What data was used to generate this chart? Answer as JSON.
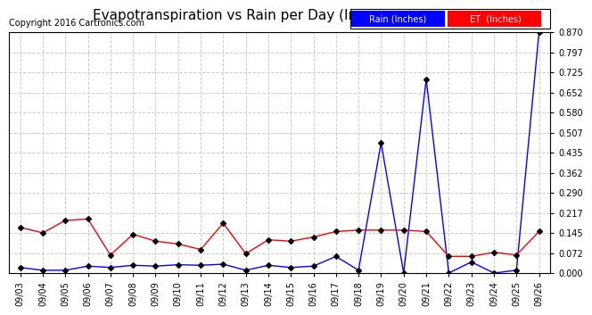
{
  "title": "Evapotranspiration vs Rain per Day (Inches) 20160927",
  "copyright": "Copyright 2016 Cartronics.com",
  "background_color": "#ffffff",
  "plot_bg_color": "#ffffff",
  "grid_color": "#cccccc",
  "x_labels": [
    "09/03",
    "09/04",
    "09/05",
    "09/06",
    "09/07",
    "09/08",
    "09/09",
    "09/10",
    "09/11",
    "09/12",
    "09/13",
    "09/14",
    "09/15",
    "09/16",
    "09/17",
    "09/18",
    "09/19",
    "09/20",
    "09/21",
    "09/22",
    "09/23",
    "09/24",
    "09/25",
    "09/26"
  ],
  "rain_data": [
    0.02,
    0.01,
    0.01,
    0.025,
    0.02,
    0.028,
    0.025,
    0.03,
    0.028,
    0.032,
    0.01,
    0.028,
    0.02,
    0.025,
    0.06,
    0.01,
    0.47,
    0.0,
    0.7,
    0.0,
    0.04,
    0.0,
    0.01,
    0.87
  ],
  "et_data": [
    0.165,
    0.145,
    0.19,
    0.195,
    0.065,
    0.14,
    0.115,
    0.105,
    0.085,
    0.18,
    0.07,
    0.12,
    0.115,
    0.13,
    0.15,
    0.155,
    0.155,
    0.155,
    0.15,
    0.06,
    0.06,
    0.075,
    0.065,
    0.15
  ],
  "rain_color": "#0000ff",
  "et_color": "#ff0000",
  "marker": "D",
  "marker_size": 3,
  "line_width": 1.0,
  "ylim": [
    0.0,
    0.87
  ],
  "yticks": [
    0.0,
    0.072,
    0.145,
    0.217,
    0.29,
    0.362,
    0.435,
    0.507,
    0.58,
    0.652,
    0.725,
    0.797,
    0.87
  ],
  "legend_rain_label": "Rain (Inches)",
  "legend_et_label": "ET  (Inches)",
  "legend_rain_bg": "#0000ff",
  "legend_et_bg": "#ff0000",
  "title_fontsize": 11,
  "tick_fontsize": 7,
  "copyright_fontsize": 7
}
